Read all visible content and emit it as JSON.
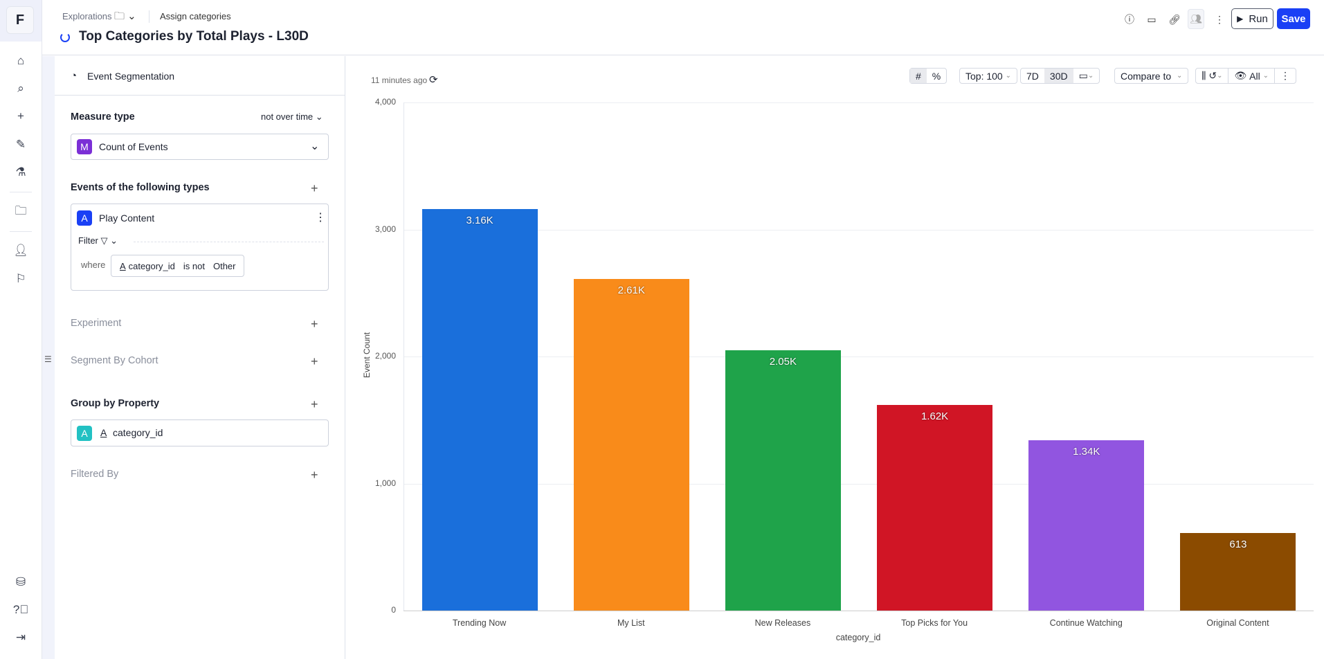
{
  "nav": {
    "logo": "F",
    "icons": [
      "home-icon",
      "search-icon",
      "plus-icon",
      "edit-document-icon",
      "experiments-icon",
      "folder-icon",
      "user-icon",
      "flag-icon",
      "database-icon",
      "help-icon",
      "logout-icon"
    ]
  },
  "header": {
    "breadcrumb": "Explorations",
    "assign": "Assign categories",
    "title": "Top Categories by Total Plays - L30D",
    "run": "Run",
    "save": "Save"
  },
  "panel": {
    "title": "Event Segmentation",
    "measure_label": "Measure type",
    "measure_mode": "not over time",
    "measure_badge": "M",
    "measure_value": "Count of Events",
    "events_label": "Events of the following types",
    "event_badge": "A",
    "event_name": "Play Content",
    "filter_label": "Filter",
    "where": "where",
    "filter_prop": "category_id",
    "filter_op": "is not",
    "filter_val": "Other",
    "experiment": "Experiment",
    "cohort": "Segment By Cohort",
    "group_label": "Group by Property",
    "group_badge": "A",
    "group_prop": "category_id",
    "filtered_by": "Filtered By"
  },
  "toolbar": {
    "updated": "11 minutes ago",
    "top": "Top: 100",
    "d7": "7D",
    "d30": "30D",
    "compare": "Compare to",
    "all": "All"
  },
  "colors": {
    "accent": "#1a40f5",
    "bars": [
      "#1a6fdb",
      "#f98b1a",
      "#1fa34a",
      "#d01525",
      "#9155e0",
      "#8b4b00"
    ]
  },
  "chart_data": {
    "type": "bar",
    "categories": [
      "Trending Now",
      "My List",
      "New Releases",
      "Top Picks for You",
      "Continue Watching",
      "Original Content"
    ],
    "values": [
      3160,
      2610,
      2050,
      1620,
      1340,
      613
    ],
    "data_labels": [
      "3.16K",
      "2.61K",
      "2.05K",
      "1.62K",
      "1.34K",
      "613"
    ],
    "xlabel": "category_id",
    "ylabel": "Event Count",
    "ylim": [
      0,
      4000
    ],
    "yticks": [
      0,
      1000,
      2000,
      3000,
      4000
    ],
    "ytick_labels": [
      "0",
      "1,000",
      "2,000",
      "3,000",
      "4,000"
    ],
    "grid": true
  }
}
